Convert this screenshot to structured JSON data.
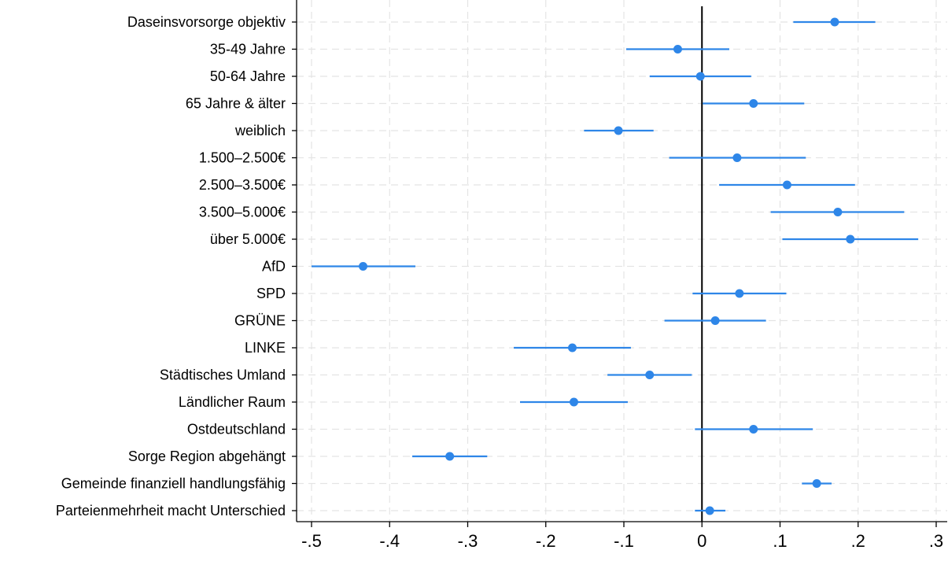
{
  "chart_data": {
    "type": "scatter",
    "variant": "coefficient-plot",
    "title": "",
    "xlabel": "",
    "ylabel": "",
    "xlim": [
      -0.5,
      0.3
    ],
    "x_ticks": [
      -0.5,
      -0.4,
      -0.3,
      -0.2,
      -0.1,
      0,
      0.1,
      0.2,
      0.3
    ],
    "x_tick_labels": [
      "-.5",
      "-.4",
      "-.3",
      "-.2",
      "-.1",
      "0",
      ".1",
      ".2",
      ".3"
    ],
    "reference_line_x": 0,
    "grid": true,
    "color": "#2e86e8",
    "rows": [
      {
        "label": "Daseinsvorsorge objektiv",
        "estimate": 0.17,
        "ci": [
          0.117,
          0.222
        ]
      },
      {
        "label": "35-49 Jahre",
        "estimate": -0.031,
        "ci": [
          -0.097,
          0.035
        ]
      },
      {
        "label": "50-64 Jahre",
        "estimate": -0.002,
        "ci": [
          -0.067,
          0.063
        ]
      },
      {
        "label": "65 Jahre & älter",
        "estimate": 0.066,
        "ci": [
          0.001,
          0.131
        ]
      },
      {
        "label": "weiblich",
        "estimate": -0.107,
        "ci": [
          -0.151,
          -0.062
        ]
      },
      {
        "label": "1.500–2.500€",
        "estimate": 0.045,
        "ci": [
          -0.042,
          0.133
        ]
      },
      {
        "label": "2.500–3.500€",
        "estimate": 0.109,
        "ci": [
          0.022,
          0.196
        ]
      },
      {
        "label": "3.500–5.000€",
        "estimate": 0.174,
        "ci": [
          0.088,
          0.259
        ]
      },
      {
        "label": "über 5.000€",
        "estimate": 0.19,
        "ci": [
          0.103,
          0.277
        ]
      },
      {
        "label": "AfD",
        "estimate": -0.434,
        "ci": [
          -0.5,
          -0.367
        ]
      },
      {
        "label": "SPD",
        "estimate": 0.048,
        "ci": [
          -0.012,
          0.108
        ]
      },
      {
        "label": "GRÜNE",
        "estimate": 0.017,
        "ci": [
          -0.048,
          0.082
        ]
      },
      {
        "label": "LINKE",
        "estimate": -0.166,
        "ci": [
          -0.241,
          -0.091
        ]
      },
      {
        "label": "Städtisches Umland",
        "estimate": -0.067,
        "ci": [
          -0.121,
          -0.013
        ]
      },
      {
        "label": "Ländlicher Raum",
        "estimate": -0.164,
        "ci": [
          -0.233,
          -0.095
        ]
      },
      {
        "label": "Ostdeutschland",
        "estimate": 0.066,
        "ci": [
          -0.009,
          0.142
        ]
      },
      {
        "label": "Sorge Region abgehängt",
        "estimate": -0.323,
        "ci": [
          -0.371,
          -0.275
        ]
      },
      {
        "label": "Gemeinde finanziell handlungsfähig",
        "estimate": 0.147,
        "ci": [
          0.128,
          0.166
        ]
      },
      {
        "label": "Parteienmehrheit macht Unterschied",
        "estimate": 0.01,
        "ci": [
          -0.009,
          0.03
        ]
      }
    ]
  }
}
